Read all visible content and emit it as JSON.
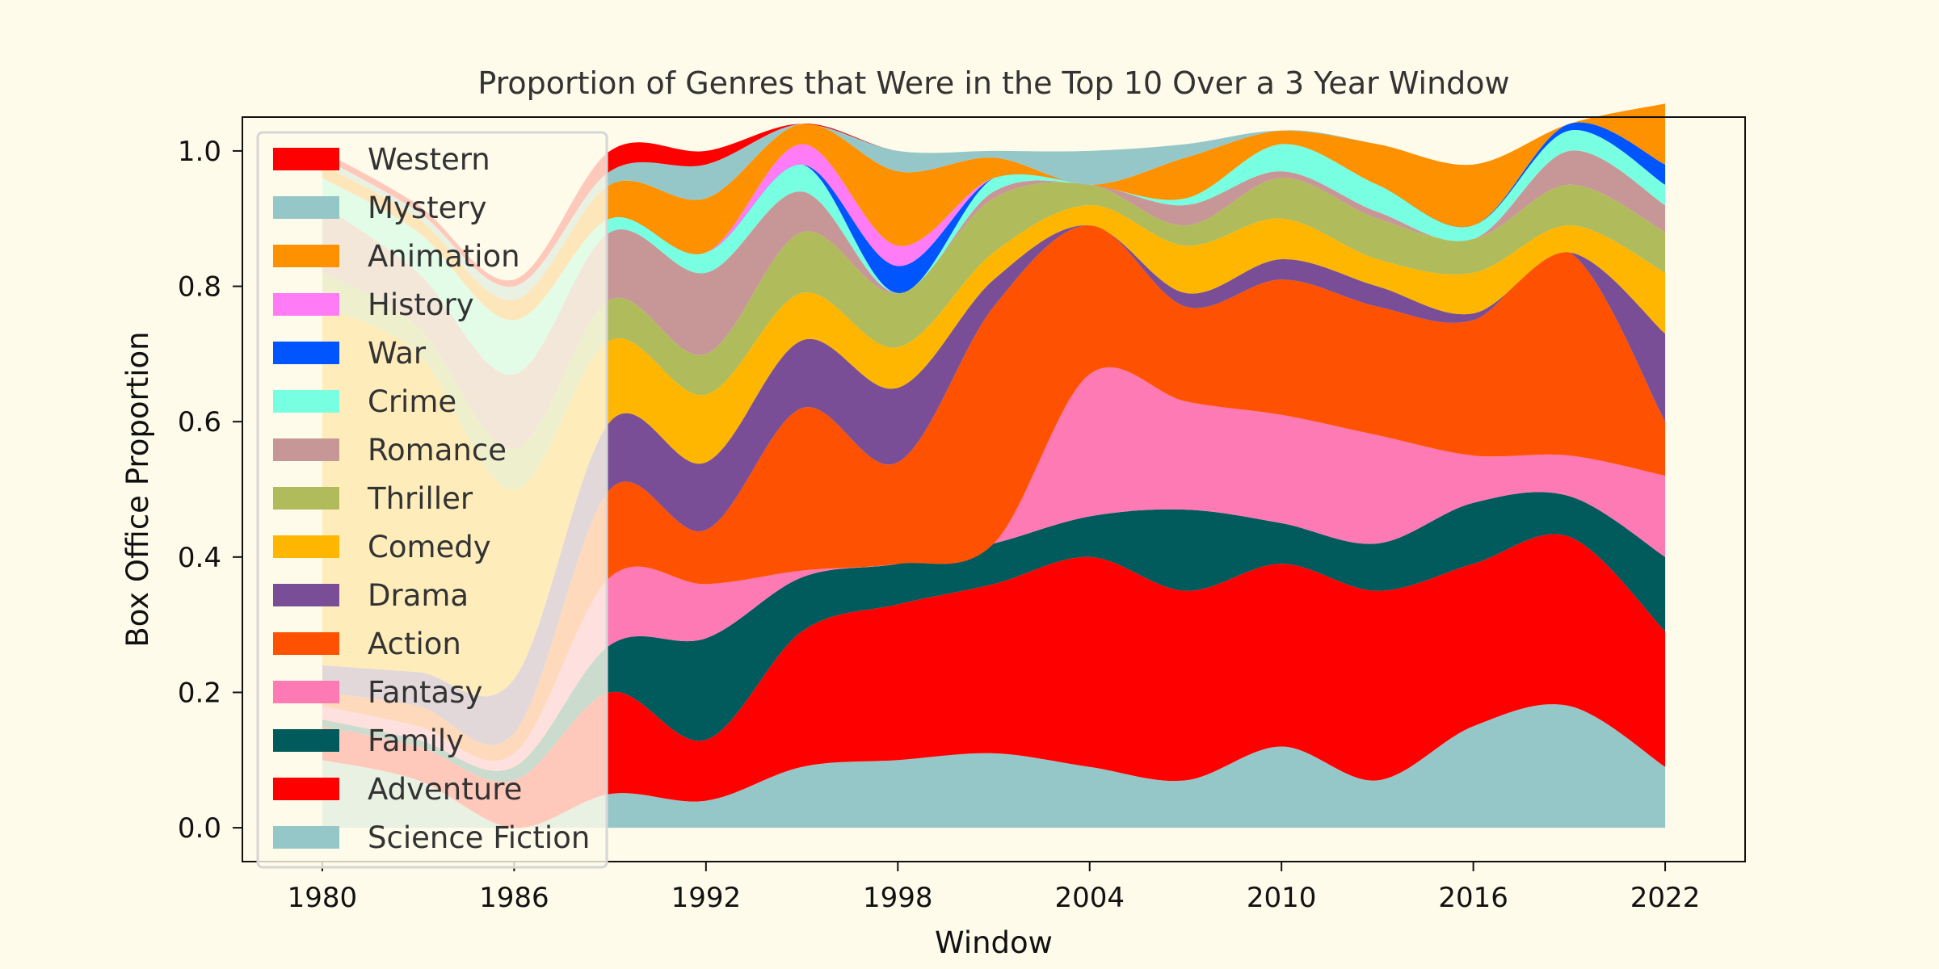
{
  "chart_data": {
    "type": "area",
    "stacked": true,
    "title": "Proportion of Genres that Were in the Top 10 Over a 3 Year Window",
    "xlabel": "Window",
    "ylabel": "Box Office Proportion",
    "xlim": [
      1977.5,
      2024.5
    ],
    "ylim": [
      -0.05,
      1.05
    ],
    "xticks": [
      1980,
      1986,
      1992,
      1998,
      2004,
      2010,
      2016,
      2022
    ],
    "yticks": [
      "0.0",
      "0.2",
      "0.4",
      "0.6",
      "0.8",
      "1.0"
    ],
    "yticks_values": [
      0.0,
      0.2,
      0.4,
      0.6,
      0.8,
      1.0
    ],
    "grid": false,
    "legend_position": "upper-left",
    "x": [
      1980,
      1983,
      1986,
      1989,
      1992,
      1995,
      1998,
      2001,
      2004,
      2007,
      2010,
      2013,
      2016,
      2019,
      2022
    ],
    "series": [
      {
        "name": "Science Fiction",
        "color": "#96c7c8",
        "values": [
          0.1,
          0.07,
          0.0,
          0.05,
          0.04,
          0.09,
          0.1,
          0.11,
          0.09,
          0.07,
          0.12,
          0.07,
          0.15,
          0.18,
          0.09
        ]
      },
      {
        "name": "Adventure",
        "color": "#ff0000",
        "values": [
          0.05,
          0.05,
          0.07,
          0.15,
          0.09,
          0.2,
          0.23,
          0.25,
          0.31,
          0.28,
          0.27,
          0.28,
          0.24,
          0.25,
          0.2
        ]
      },
      {
        "name": "Family",
        "color": "#015a5b",
        "values": [
          0.01,
          0.01,
          0.02,
          0.07,
          0.15,
          0.08,
          0.06,
          0.06,
          0.06,
          0.12,
          0.06,
          0.07,
          0.09,
          0.06,
          0.11
        ]
      },
      {
        "name": "Fantasy",
        "color": "#fd7ab4",
        "values": [
          0.02,
          0.02,
          0.02,
          0.1,
          0.08,
          0.01,
          0.0,
          0.0,
          0.21,
          0.16,
          0.16,
          0.16,
          0.07,
          0.06,
          0.12
        ]
      },
      {
        "name": "Action",
        "color": "#fe5101",
        "values": [
          0.02,
          0.03,
          0.03,
          0.13,
          0.08,
          0.24,
          0.15,
          0.35,
          0.22,
          0.14,
          0.2,
          0.19,
          0.2,
          0.3,
          0.08
        ]
      },
      {
        "name": "Drama",
        "color": "#794e96",
        "values": [
          0.04,
          0.05,
          0.08,
          0.1,
          0.1,
          0.1,
          0.11,
          0.04,
          0.0,
          0.02,
          0.03,
          0.03,
          0.01,
          0.0,
          0.13
        ]
      },
      {
        "name": "Comedy",
        "color": "#feb600",
        "values": [
          0.53,
          0.47,
          0.28,
          0.12,
          0.1,
          0.07,
          0.06,
          0.04,
          0.03,
          0.07,
          0.06,
          0.04,
          0.06,
          0.04,
          0.09
        ]
      },
      {
        "name": "Thriller",
        "color": "#b0bc5b",
        "values": [
          0.05,
          0.04,
          0.06,
          0.06,
          0.06,
          0.09,
          0.08,
          0.08,
          0.03,
          0.03,
          0.06,
          0.06,
          0.05,
          0.06,
          0.06
        ]
      },
      {
        "name": "Romance",
        "color": "#c79797",
        "values": [
          0.1,
          0.08,
          0.11,
          0.1,
          0.12,
          0.06,
          0.0,
          0.01,
          0.0,
          0.03,
          0.01,
          0.01,
          0.0,
          0.05,
          0.04
        ]
      },
      {
        "name": "Crime",
        "color": "#78fee0",
        "values": [
          0.04,
          0.06,
          0.08,
          0.02,
          0.03,
          0.04,
          0.0,
          0.02,
          0.0,
          0.01,
          0.04,
          0.04,
          0.02,
          0.03,
          0.03
        ]
      },
      {
        "name": "War",
        "color": "#0055ff",
        "values": [
          0.0,
          0.0,
          0.0,
          0.0,
          0.0,
          0.0,
          0.04,
          0.0,
          0.0,
          0.0,
          0.0,
          0.0,
          0.0,
          0.01,
          0.03
        ]
      },
      {
        "name": "History",
        "color": "#ff7cf6",
        "values": [
          0.0,
          0.0,
          0.0,
          0.0,
          0.0,
          0.03,
          0.03,
          0.0,
          0.0,
          0.0,
          0.0,
          0.0,
          0.0,
          0.0,
          0.0
        ]
      },
      {
        "name": "Animation",
        "color": "#fd9100",
        "values": [
          0.02,
          0.02,
          0.03,
          0.05,
          0.08,
          0.03,
          0.11,
          0.03,
          0.0,
          0.06,
          0.02,
          0.06,
          0.09,
          0.0,
          0.09
        ]
      },
      {
        "name": "Mystery",
        "color": "#96c7c8",
        "values": [
          0.01,
          0.01,
          0.02,
          0.02,
          0.05,
          0.0,
          0.03,
          0.01,
          0.05,
          0.02,
          0.0,
          0.0,
          0.0,
          0.0,
          0.0
        ]
      },
      {
        "name": "Western",
        "color": "#ff0000",
        "values": [
          0.01,
          0.01,
          0.01,
          0.03,
          0.02,
          0.0,
          0.0,
          0.0,
          0.0,
          0.0,
          0.0,
          0.0,
          0.0,
          0.0,
          0.0
        ]
      }
    ],
    "legend_order": [
      "Western",
      "Mystery",
      "Animation",
      "History",
      "War",
      "Crime",
      "Romance",
      "Thriller",
      "Comedy",
      "Drama",
      "Action",
      "Fantasy",
      "Family",
      "Adventure",
      "Science Fiction"
    ]
  }
}
